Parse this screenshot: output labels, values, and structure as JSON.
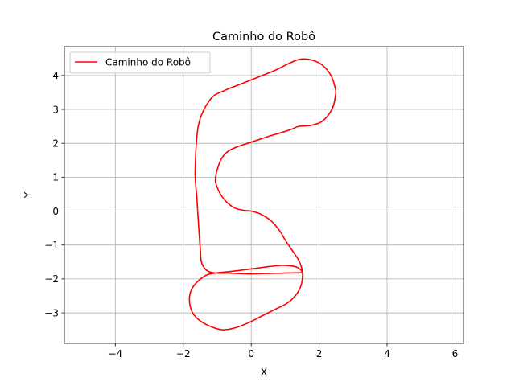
{
  "chart_data": {
    "type": "line",
    "title": "Caminho do Robô",
    "xlabel": "X",
    "ylabel": "Y",
    "xlim": [
      -5.5,
      6.25
    ],
    "ylim": [
      -3.9,
      4.85
    ],
    "xticks": [
      -4,
      -2,
      0,
      2,
      4,
      6
    ],
    "yticks": [
      -3,
      -2,
      -1,
      0,
      1,
      2,
      3,
      4
    ],
    "xtick_labels": [
      "−4",
      "−2",
      "0",
      "2",
      "4",
      "6"
    ],
    "ytick_labels": [
      "−3",
      "−2",
      "−1",
      "0",
      "1",
      "2",
      "3",
      "4"
    ],
    "grid": true,
    "legend_position": "top-left",
    "colors": {
      "series": "#ff0000",
      "grid": "#b0b0b0",
      "axes": "#000000"
    },
    "series": [
      {
        "name": "Caminho do Robô",
        "x": [
          0.0,
          0.3,
          0.6,
          0.85,
          1.0,
          1.2,
          1.4,
          1.5,
          1.5,
          1.4,
          1.2,
          1.0,
          0.7,
          0.3,
          -0.1,
          -0.5,
          -0.85,
          -1.2,
          -1.55,
          -1.75,
          -1.82,
          -1.75,
          -1.55,
          -1.3,
          -1.0,
          -0.6,
          -0.2,
          0.4,
          0.9,
          1.2,
          1.4,
          1.5,
          1.4,
          1.2,
          0.9,
          0.4,
          -0.1,
          -0.6,
          -1.2,
          -1.45,
          -1.5,
          -1.55,
          -1.6,
          -1.65,
          -1.55,
          -1.2,
          -0.8,
          -0.3,
          0.2,
          0.7,
          1.1,
          1.45,
          1.8,
          2.1,
          2.35,
          2.48,
          2.48,
          2.4,
          2.2,
          2.0,
          1.7,
          1.4,
          1.2,
          0.9,
          0.5,
          0.2,
          -0.1,
          -0.4,
          -0.7,
          -0.9,
          -1.05,
          -1.0,
          -0.8,
          -0.5,
          -0.2,
          0.0
        ],
        "y": [
          0.0,
          -0.1,
          -0.3,
          -0.6,
          -0.85,
          -1.15,
          -1.45,
          -1.75,
          -2.05,
          -2.35,
          -2.6,
          -2.75,
          -2.9,
          -3.1,
          -3.3,
          -3.45,
          -3.5,
          -3.4,
          -3.2,
          -2.95,
          -2.6,
          -2.3,
          -2.05,
          -1.88,
          -1.82,
          -1.78,
          -1.73,
          -1.65,
          -1.6,
          -1.62,
          -1.68,
          -1.8,
          -1.82,
          -1.82,
          -1.83,
          -1.84,
          -1.85,
          -1.83,
          -1.8,
          -1.55,
          -1.1,
          -0.4,
          0.4,
          1.2,
          2.55,
          3.3,
          3.55,
          3.75,
          3.95,
          4.15,
          4.35,
          4.48,
          4.45,
          4.3,
          4.0,
          3.6,
          3.4,
          3.05,
          2.75,
          2.6,
          2.52,
          2.5,
          2.42,
          2.32,
          2.2,
          2.1,
          2.0,
          1.9,
          1.75,
          1.5,
          1.0,
          0.7,
          0.35,
          0.1,
          0.02,
          0.0
        ]
      }
    ]
  }
}
